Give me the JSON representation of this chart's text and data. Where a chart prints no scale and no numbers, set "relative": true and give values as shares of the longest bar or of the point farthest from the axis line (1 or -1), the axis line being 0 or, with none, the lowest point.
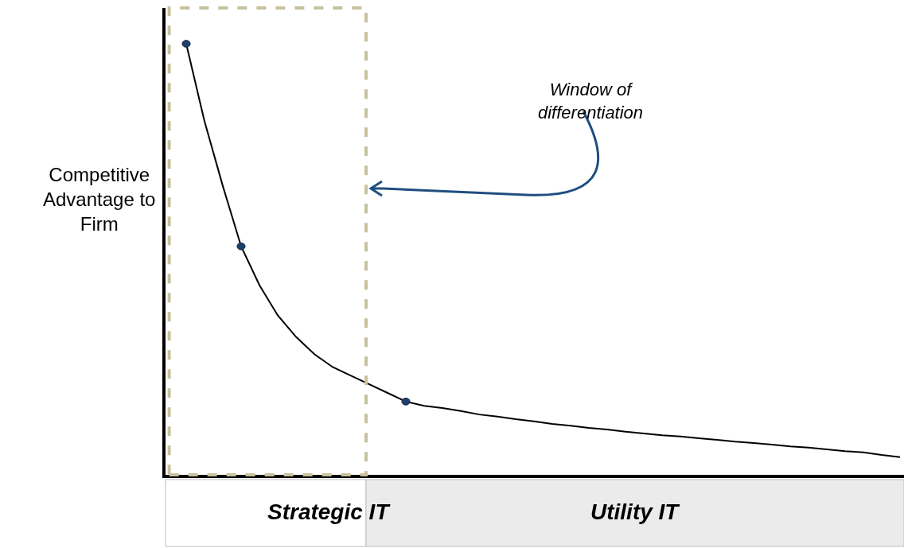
{
  "chart_data": {
    "type": "line",
    "relative": true,
    "ylabel": "Competitive Advantage to Firm",
    "annotations": [
      "Window of differentiation",
      "Strategic IT",
      "Utility IT"
    ],
    "categories": [
      null,
      null,
      null,
      null,
      null,
      null,
      null,
      null,
      null,
      null,
      null,
      null,
      null,
      null,
      null,
      null,
      null,
      null,
      null,
      null,
      null,
      null,
      null,
      null,
      null,
      null,
      null,
      null,
      null,
      null,
      null,
      null,
      null,
      null,
      null,
      null,
      null,
      null,
      null,
      null
    ],
    "series": [
      {
        "color": "#000000",
        "marker": "none",
        "values": [
          1.0,
          0.82,
          0.67,
          0.53,
          0.44,
          0.37,
          0.32,
          0.28,
          0.25,
          0.23,
          0.21,
          0.19,
          0.17,
          0.16,
          0.155,
          0.148,
          0.14,
          0.135,
          0.129,
          0.124,
          0.118,
          0.114,
          0.109,
          0.105,
          0.1,
          0.096,
          0.092,
          0.089,
          0.085,
          0.081,
          0.077,
          0.074,
          0.07,
          0.066,
          0.063,
          0.059,
          0.055,
          0.052,
          0.046,
          0.041
        ]
      }
    ]
  }
}
